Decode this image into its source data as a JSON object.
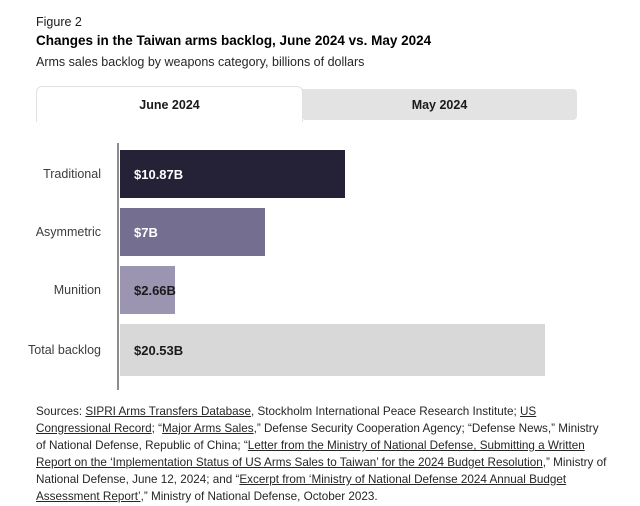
{
  "header": {
    "figure_label": "Figure 2",
    "title": "Changes in the Taiwan arms backlog, June 2024 vs. May 2024",
    "subtitle": "Arms sales backlog by weapons category, billions of dollars"
  },
  "tabs": [
    {
      "label": "June 2024",
      "active": true
    },
    {
      "label": "May 2024",
      "active": false
    }
  ],
  "chart_data": {
    "type": "bar",
    "orientation": "horizontal",
    "title": "Changes in the Taiwan arms backlog, June 2024 vs. May 2024",
    "xlabel": "billions of dollars",
    "ylabel": "weapons category",
    "categories": [
      "Traditional",
      "Asymmetric",
      "Munition",
      "Total backlog"
    ],
    "values": [
      10.87,
      7,
      2.66,
      20.53
    ],
    "value_labels": [
      "$10.87B",
      "$7B",
      "$2.66B",
      "$20.53B"
    ],
    "xmax": 20.53,
    "grid": false,
    "legend": "none",
    "bar_colors": [
      "#252238",
      "#746e90",
      "#9b95b1",
      "#d8d8d8"
    ],
    "value_label_colors": [
      "#ffffff",
      "#ffffff",
      "#1a1a1a",
      "#1a1a1a"
    ],
    "axis_color": "#8c8c8c"
  },
  "colors": {
    "tab_active_bg": "#ffffff",
    "tab_inactive_bg": "#e3e3e3",
    "tab_border": "#e1e1e1",
    "page_bg": "#ffffff"
  },
  "sources": {
    "segments": [
      {
        "text": "Sources: ",
        "underline": false
      },
      {
        "text": "SIPRI Arms Transfers Database",
        "underline": true
      },
      {
        "text": ", Stockholm International Peace Research Institute; ",
        "underline": false
      },
      {
        "text": "US Congressional Record",
        "underline": true
      },
      {
        "text": "; “",
        "underline": false
      },
      {
        "text": "Major Arms Sales",
        "underline": true
      },
      {
        "text": ",” Defense Security Cooperation Agency; “Defense News,” Ministry of National Defense, Republic of China; “",
        "underline": false
      },
      {
        "text": "Letter from the Ministry of National Defense, Submitting a Written Report on the ‘Implementation Status of US Arms Sales to Taiwan’ for the 2024 Budget Resolution",
        "underline": true
      },
      {
        "text": ",” Ministry of National Defense, June 12, 2024; and “",
        "underline": false
      },
      {
        "text": "Excerpt from ‘Ministry of National Defense 2024 Annual Budget Assessment Report’",
        "underline": true
      },
      {
        "text": ",” Ministry of National Defense, October 2023.",
        "underline": false
      }
    ]
  }
}
